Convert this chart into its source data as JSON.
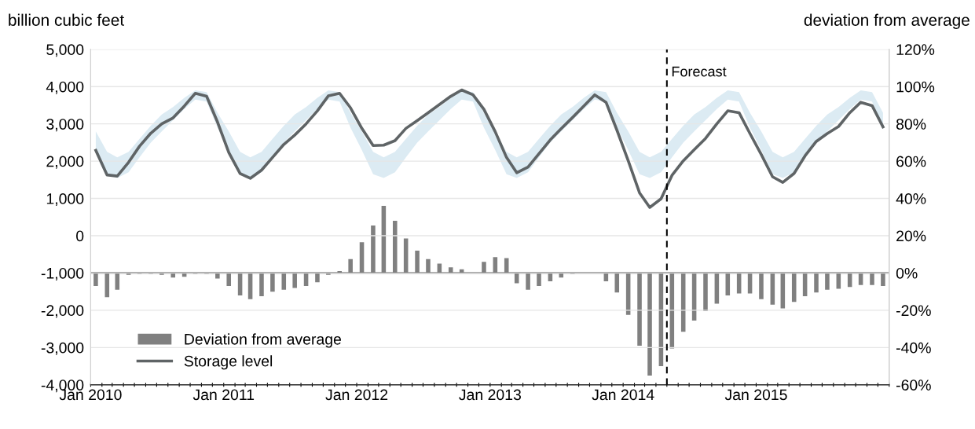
{
  "chart_data": {
    "type": "bar",
    "ylabel": "billion cubic feet",
    "y2label": "deviation from average",
    "x": [
      "2010-01-15",
      "2010-02-15",
      "2010-03-15",
      "2010-04-15",
      "2010-05-15",
      "2010-06-15",
      "2010-07-15",
      "2010-08-15",
      "2010-09-15",
      "2010-10-15",
      "2010-11-15",
      "2010-12-15",
      "2011-01-15",
      "2011-02-15",
      "2011-03-15",
      "2011-04-15",
      "2011-05-15",
      "2011-06-15",
      "2011-07-15",
      "2011-08-15",
      "2011-09-15",
      "2011-10-15",
      "2011-11-15",
      "2011-12-15",
      "2012-01-15",
      "2012-02-15",
      "2012-03-15",
      "2012-04-15",
      "2012-05-15",
      "2012-06-15",
      "2012-07-15",
      "2012-08-15",
      "2012-09-15",
      "2012-10-15",
      "2012-11-15",
      "2012-12-15",
      "2013-01-15",
      "2013-02-15",
      "2013-03-15",
      "2013-04-15",
      "2013-05-15",
      "2013-06-15",
      "2013-07-15",
      "2013-08-15",
      "2013-09-15",
      "2013-10-15",
      "2013-11-15",
      "2013-12-15",
      "2014-01-15",
      "2014-02-15",
      "2014-03-15",
      "2014-04-15",
      "2014-05-15",
      "2014-06-15",
      "2014-07-15",
      "2014-08-15",
      "2014-09-15",
      "2014-10-15",
      "2014-11-15",
      "2014-12-15",
      "2015-01-15",
      "2015-02-15",
      "2015-03-15",
      "2015-04-15",
      "2015-05-15",
      "2015-06-15",
      "2015-07-15",
      "2015-08-15",
      "2015-09-15",
      "2015-10-15",
      "2015-11-15",
      "2015-12-15"
    ],
    "series": [
      {
        "name": "Deviation from average",
        "axis": "y2",
        "color": "#808080",
        "values": [
          -7,
          -13,
          -9,
          -1,
          -0.5,
          -0.5,
          -1,
          -2.5,
          -2,
          -0.5,
          -0.5,
          -3,
          -7,
          -12,
          -14,
          -12.5,
          -10,
          -9,
          -8,
          -7,
          -5,
          -1,
          1,
          7.5,
          16.5,
          25.5,
          36,
          28,
          18.5,
          12,
          7.5,
          5,
          3,
          2,
          0,
          6,
          8.5,
          8,
          -5.5,
          -9,
          -7,
          -4.5,
          -2.5,
          -0.5,
          null,
          null,
          -4.5,
          -10.5,
          -22.5,
          -39,
          -55,
          -50,
          -40.5,
          -31.5,
          -25.5,
          -20.5,
          -16.5,
          -12,
          -11,
          -11,
          -14,
          -17,
          -19,
          -15.5,
          -12.5,
          -10.5,
          -9,
          -8.5,
          -7.5,
          -6.5,
          -6.5,
          -7
        ]
      },
      {
        "name": "Storage level",
        "type": "line",
        "axis": "y",
        "color": "#5f6466",
        "values": [
          2290,
          1630,
          1600,
          1970,
          2400,
          2750,
          3000,
          3160,
          3480,
          3820,
          3740,
          3050,
          2230,
          1670,
          1540,
          1760,
          2100,
          2450,
          2700,
          3000,
          3350,
          3750,
          3820,
          3430,
          2880,
          2420,
          2430,
          2550,
          2880,
          3090,
          3300,
          3520,
          3740,
          3910,
          3780,
          3390,
          2790,
          2100,
          1690,
          1840,
          2200,
          2570,
          2870,
          3170,
          3480,
          3780,
          3580,
          2830,
          2010,
          1150,
          760,
          990,
          1620,
          2010,
          2310,
          2610,
          3000,
          3350,
          3300,
          2740,
          2180,
          1580,
          1430,
          1670,
          2140,
          2530,
          2740,
          2930,
          3300,
          3580,
          3490,
          2920
        ],
        "lower": [
          2300,
          1650,
          1550,
          1700,
          2100,
          2500,
          2800,
          3100,
          3400,
          3650,
          3600,
          2900,
          2300,
          1650,
          1550,
          1700,
          2100,
          2500,
          2800,
          3100,
          3400,
          3650,
          3600,
          2900,
          2300,
          1650,
          1550,
          1700,
          2100,
          2500,
          2800,
          3100,
          3400,
          3650,
          3600,
          2900,
          2300,
          1650,
          1550,
          1700,
          2100,
          2500,
          2800,
          3100,
          3400,
          3650,
          3600,
          2900,
          2300,
          1650,
          1550,
          1700,
          2100,
          2500,
          2800,
          3100,
          3400,
          3650,
          3600,
          2900,
          2300,
          1650,
          1550,
          1700,
          2100,
          2500,
          2800,
          3100,
          3400,
          3650,
          3600,
          2900
        ],
        "upper": [
          2800,
          2250,
          2100,
          2250,
          2600,
          2950,
          3250,
          3450,
          3700,
          3900,
          3850,
          3300,
          2800,
          2250,
          2100,
          2250,
          2600,
          2950,
          3250,
          3450,
          3700,
          3900,
          3850,
          3300,
          2800,
          2250,
          2100,
          2250,
          2600,
          2950,
          3250,
          3450,
          3700,
          3900,
          3850,
          3300,
          2800,
          2250,
          2100,
          2250,
          2600,
          2950,
          3250,
          3450,
          3700,
          3900,
          3850,
          3300,
          2800,
          2250,
          2100,
          2250,
          2600,
          2950,
          3250,
          3450,
          3700,
          3900,
          3850,
          3300,
          2800,
          2250,
          2100,
          2250,
          2600,
          2950,
          3250,
          3450,
          3700,
          3900,
          3850,
          3300
        ]
      }
    ],
    "xlim": [
      "2010-01-01",
      "2016-01-01"
    ],
    "xticks": [
      {
        "value": "2010-01-01",
        "label": "Jan 2010"
      },
      {
        "value": "2010-02-01",
        "label": null
      },
      {
        "value": "2010-03-01",
        "label": null
      },
      {
        "value": "2010-04-01",
        "label": null
      },
      {
        "value": "2010-05-01",
        "label": null
      },
      {
        "value": "2010-06-01",
        "label": null
      },
      {
        "value": "2010-07-01",
        "label": null
      },
      {
        "value": "2010-08-01",
        "label": null
      },
      {
        "value": "2010-09-01",
        "label": null
      },
      {
        "value": "2010-10-01",
        "label": null
      },
      {
        "value": "2010-11-01",
        "label": null
      },
      {
        "value": "2010-12-01",
        "label": null
      },
      {
        "value": "2011-01-01",
        "label": "Jan 2011"
      },
      {
        "value": "2011-02-01",
        "label": null
      },
      {
        "value": "2011-03-01",
        "label": null
      },
      {
        "value": "2011-04-01",
        "label": null
      },
      {
        "value": "2011-05-01",
        "label": null
      },
      {
        "value": "2011-06-01",
        "label": null
      },
      {
        "value": "2011-07-01",
        "label": null
      },
      {
        "value": "2011-08-01",
        "label": null
      },
      {
        "value": "2011-09-01",
        "label": null
      },
      {
        "value": "2011-10-01",
        "label": null
      },
      {
        "value": "2011-11-01",
        "label": null
      },
      {
        "value": "2011-12-01",
        "label": null
      },
      {
        "value": "2012-01-01",
        "label": "Jan 2012"
      },
      {
        "value": "2012-02-01",
        "label": null
      },
      {
        "value": "2012-03-01",
        "label": null
      },
      {
        "value": "2012-04-01",
        "label": null
      },
      {
        "value": "2012-05-01",
        "label": null
      },
      {
        "value": "2012-06-01",
        "label": null
      },
      {
        "value": "2012-07-01",
        "label": null
      },
      {
        "value": "2012-08-01",
        "label": null
      },
      {
        "value": "2012-09-01",
        "label": null
      },
      {
        "value": "2012-10-01",
        "label": null
      },
      {
        "value": "2012-11-01",
        "label": null
      },
      {
        "value": "2012-12-01",
        "label": null
      },
      {
        "value": "2013-01-01",
        "label": "Jan 2013"
      },
      {
        "value": "2013-02-01",
        "label": null
      },
      {
        "value": "2013-03-01",
        "label": null
      },
      {
        "value": "2013-04-01",
        "label": null
      },
      {
        "value": "2013-05-01",
        "label": null
      },
      {
        "value": "2013-06-01",
        "label": null
      },
      {
        "value": "2013-07-01",
        "label": null
      },
      {
        "value": "2013-08-01",
        "label": null
      },
      {
        "value": "2013-09-01",
        "label": null
      },
      {
        "value": "2013-10-01",
        "label": null
      },
      {
        "value": "2013-11-01",
        "label": null
      },
      {
        "value": "2013-12-01",
        "label": null
      },
      {
        "value": "2014-01-01",
        "label": "Jan 2014"
      },
      {
        "value": "2014-02-01",
        "label": null
      },
      {
        "value": "2014-03-01",
        "label": null
      },
      {
        "value": "2014-04-01",
        "label": null
      },
      {
        "value": "2014-05-01",
        "label": null
      },
      {
        "value": "2014-06-01",
        "label": null
      },
      {
        "value": "2014-07-01",
        "label": null
      },
      {
        "value": "2014-08-01",
        "label": null
      },
      {
        "value": "2014-09-01",
        "label": null
      },
      {
        "value": "2014-10-01",
        "label": null
      },
      {
        "value": "2014-11-01",
        "label": null
      },
      {
        "value": "2014-12-01",
        "label": null
      },
      {
        "value": "2015-01-01",
        "label": "Jan 2015"
      },
      {
        "value": "2015-02-01",
        "label": null
      },
      {
        "value": "2015-03-01",
        "label": null
      },
      {
        "value": "2015-04-01",
        "label": null
      },
      {
        "value": "2015-05-01",
        "label": null
      },
      {
        "value": "2015-06-01",
        "label": null
      },
      {
        "value": "2015-07-01",
        "label": null
      },
      {
        "value": "2015-08-01",
        "label": null
      },
      {
        "value": "2015-09-01",
        "label": null
      },
      {
        "value": "2015-10-01",
        "label": null
      },
      {
        "value": "2015-11-01",
        "label": null
      },
      {
        "value": "2015-12-01",
        "label": null
      },
      {
        "value": "2016-01-01",
        "label": null
      }
    ],
    "ylim": [
      -4000,
      5000
    ],
    "yticks": [
      {
        "value": -4000,
        "label": "-4,000"
      },
      {
        "value": -3000,
        "label": "-3,000"
      },
      {
        "value": -2000,
        "label": "-2,000"
      },
      {
        "value": -1000,
        "label": "-1,000"
      },
      0,
      {
        "value": 1000,
        "label": "1,000"
      },
      {
        "value": 2000,
        "label": "2,000"
      },
      {
        "value": 3000,
        "label": "3,000"
      },
      {
        "value": 4000,
        "label": "4,000"
      },
      {
        "value": 5000,
        "label": "5,000"
      }
    ],
    "y2lim": [
      -60,
      120
    ],
    "y2ticks": [
      {
        "value": -60,
        "label": "-60%"
      },
      {
        "value": -40,
        "label": "-40%"
      },
      {
        "value": -20,
        "label": "-20%"
      },
      {
        "value": 0,
        "label": "0%"
      },
      {
        "value": 20,
        "label": "20%"
      },
      {
        "value": 40,
        "label": "40%"
      },
      {
        "value": 60,
        "label": "60%"
      },
      {
        "value": 80,
        "label": "80%"
      },
      {
        "value": 100,
        "label": "100%"
      },
      {
        "value": 120,
        "label": "120%"
      }
    ],
    "ref_lines": [
      {
        "axis": "x",
        "value": "2014-05-01",
        "label": "Forecast",
        "color": "#000000",
        "line_style": "dashed"
      },
      {
        "axis": "y2",
        "value": 0,
        "color": "#000000",
        "line_style": "solid"
      }
    ],
    "grid": "y",
    "legend": "bottom left"
  }
}
